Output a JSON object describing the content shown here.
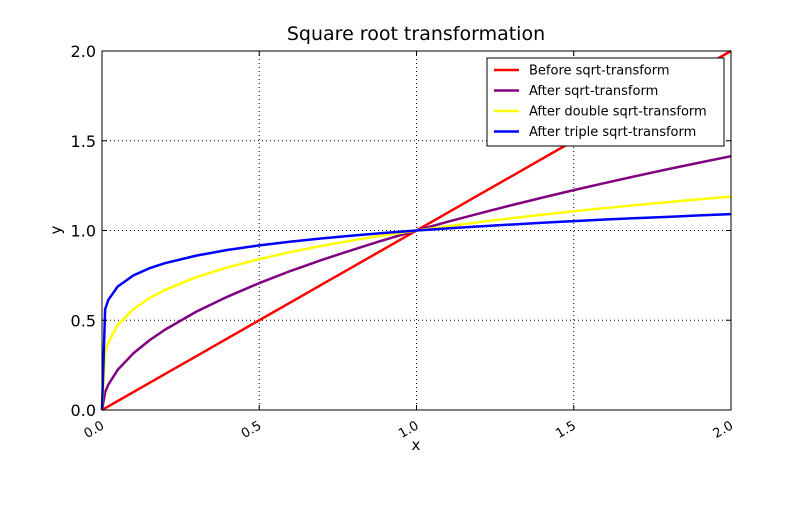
{
  "chart_data": {
    "type": "line",
    "title": "Square root transformation",
    "xlabel": "x",
    "ylabel": "y",
    "xlim": [
      0.0,
      2.0
    ],
    "ylim": [
      0.0,
      2.0
    ],
    "grid": true,
    "legend_position": "top-right",
    "x_ticks": [
      "0.0",
      "0.5",
      "1.0",
      "1.5",
      "2.0"
    ],
    "y_ticks": [
      "0.0",
      "0.5",
      "1.0",
      "1.5",
      "2.0"
    ],
    "x": [
      0.0,
      0.01,
      0.02,
      0.05,
      0.1,
      0.15,
      0.2,
      0.3,
      0.4,
      0.5,
      0.6,
      0.7,
      0.8,
      0.9,
      1.0,
      1.1,
      1.2,
      1.3,
      1.4,
      1.5,
      1.6,
      1.7,
      1.8,
      1.9,
      2.0
    ],
    "series": [
      {
        "name": "Before sqrt-transform",
        "color": "#ff0000",
        "values": [
          0.0,
          0.01,
          0.02,
          0.05,
          0.1,
          0.15,
          0.2,
          0.3,
          0.4,
          0.5,
          0.6,
          0.7,
          0.8,
          0.9,
          1.0,
          1.1,
          1.2,
          1.3,
          1.4,
          1.5,
          1.6,
          1.7,
          1.8,
          1.9,
          2.0
        ]
      },
      {
        "name": "After sqrt-transform",
        "color": "#800080",
        "values": [
          0.0,
          0.1,
          0.141,
          0.224,
          0.316,
          0.387,
          0.447,
          0.548,
          0.632,
          0.707,
          0.775,
          0.837,
          0.894,
          0.949,
          1.0,
          1.049,
          1.095,
          1.14,
          1.183,
          1.225,
          1.265,
          1.304,
          1.342,
          1.378,
          1.414
        ]
      },
      {
        "name": "After double sqrt-transform",
        "color": "#ffff00",
        "values": [
          0.0,
          0.316,
          0.376,
          0.473,
          0.562,
          0.622,
          0.669,
          0.74,
          0.795,
          0.841,
          0.88,
          0.915,
          0.946,
          0.974,
          1.0,
          1.024,
          1.047,
          1.068,
          1.088,
          1.107,
          1.125,
          1.142,
          1.158,
          1.174,
          1.189
        ]
      },
      {
        "name": "After triple sqrt-transform",
        "color": "#0000ff",
        "values": [
          0.0,
          0.562,
          0.613,
          0.688,
          0.75,
          0.789,
          0.818,
          0.86,
          0.892,
          0.917,
          0.938,
          0.956,
          0.972,
          0.987,
          1.0,
          1.012,
          1.023,
          1.033,
          1.043,
          1.052,
          1.061,
          1.069,
          1.076,
          1.084,
          1.091
        ]
      }
    ]
  }
}
